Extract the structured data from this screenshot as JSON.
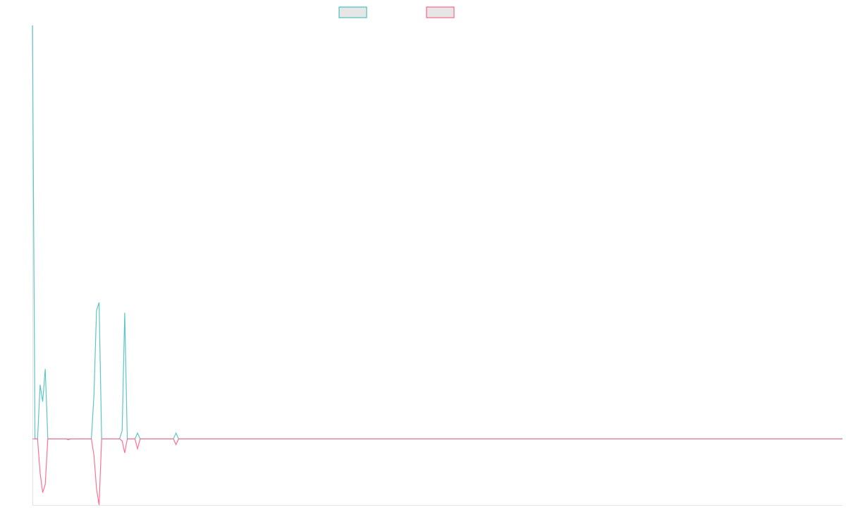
{
  "chart_data": {
    "type": "line",
    "title": "",
    "xlabel": "",
    "ylabel": "",
    "ylim": [
      -16,
      100
    ],
    "grid": false,
    "legend_placement": "top",
    "series": [
      {
        "color": "#4bc0c0",
        "values": [
          100,
          0,
          0,
          13.1,
          9,
          16.9,
          0,
          0,
          0,
          0,
          0,
          0,
          0,
          0,
          0,
          0,
          0,
          0,
          0,
          0,
          0,
          0,
          0,
          0,
          10.6,
          31,
          33,
          0,
          0,
          0,
          0,
          0,
          0,
          0,
          0,
          2,
          30.5,
          0,
          0,
          0,
          0,
          1.4,
          0,
          0,
          0,
          0,
          0,
          0,
          0,
          0,
          0,
          0,
          0,
          0,
          0,
          0,
          1.4,
          0,
          0,
          0,
          0,
          0,
          0,
          0,
          0,
          0,
          0,
          0,
          0,
          0,
          0,
          0,
          0,
          0,
          0,
          0,
          0,
          0,
          0,
          0,
          0,
          0,
          0,
          0,
          0,
          0,
          0,
          0,
          0,
          0,
          0,
          0,
          0,
          0,
          0,
          0,
          0,
          0,
          0,
          0,
          0,
          0,
          0,
          0,
          0,
          0,
          0,
          0,
          0,
          0,
          0,
          0,
          0,
          0,
          0,
          0,
          0,
          0,
          0,
          0,
          0,
          0,
          0,
          0,
          0,
          0,
          0,
          0,
          0,
          0,
          0,
          0,
          0,
          0,
          0,
          0,
          0,
          0,
          0,
          0,
          0,
          0,
          0,
          0,
          0,
          0,
          0,
          0,
          0,
          0,
          0,
          0,
          0,
          0,
          0,
          0,
          0,
          0,
          0,
          0,
          0,
          0,
          0,
          0,
          0,
          0,
          0,
          0,
          0,
          0,
          0,
          0,
          0,
          0,
          0,
          0,
          0,
          0,
          0,
          0,
          0,
          0,
          0,
          0,
          0,
          0,
          0,
          0,
          0,
          0,
          0,
          0,
          0,
          0,
          0,
          0,
          0,
          0,
          0,
          0,
          0,
          0,
          0,
          0,
          0,
          0,
          0,
          0,
          0,
          0,
          0,
          0,
          0,
          0,
          0,
          0,
          0,
          0,
          0,
          0,
          0,
          0,
          0,
          0,
          0,
          0,
          0,
          0,
          0,
          0,
          0,
          0,
          0,
          0,
          0,
          0,
          0,
          0,
          0,
          0,
          0,
          0,
          0,
          0,
          0,
          0,
          0,
          0,
          0,
          0,
          0,
          0,
          0,
          0,
          0,
          0,
          0,
          0,
          0,
          0,
          0,
          0,
          0,
          0,
          0,
          0,
          0,
          0,
          0,
          0,
          0,
          0,
          0,
          0,
          0,
          0,
          0,
          0,
          0,
          0,
          0,
          0,
          0,
          0,
          0,
          0,
          0,
          0,
          0,
          0,
          0,
          0,
          0,
          0,
          0,
          0,
          0,
          0,
          0,
          0,
          0,
          0,
          0,
          0,
          0,
          0,
          0,
          0,
          0,
          0,
          0,
          0,
          0,
          0,
          0,
          0,
          0
        ]
      },
      {
        "color": "#ff6384",
        "values": [
          0,
          0,
          0,
          -8.2,
          -13,
          -11,
          0,
          0,
          0,
          0,
          0,
          0,
          0,
          0,
          -0.2,
          0,
          0,
          0,
          0,
          0,
          0,
          0,
          0,
          0,
          -4,
          -12,
          -16,
          0,
          0,
          0,
          0,
          0,
          0,
          0,
          0,
          -0.5,
          -3.4,
          0,
          0,
          0,
          0,
          -2.4,
          0,
          0,
          0,
          0,
          0,
          0,
          0,
          0,
          0,
          0,
          0,
          0,
          0,
          0,
          -1.4,
          0,
          0,
          0,
          0,
          0,
          0,
          0,
          0,
          0,
          0,
          0,
          0,
          0,
          0,
          0,
          0,
          0,
          0,
          0,
          0,
          0,
          0,
          0,
          0,
          0,
          0,
          0,
          0,
          0,
          0,
          0,
          0,
          0,
          0,
          0,
          0,
          0,
          0,
          0,
          0,
          0,
          0,
          0,
          0,
          0,
          0,
          0,
          0,
          0,
          0,
          0,
          0,
          0,
          0,
          0,
          0,
          0,
          0,
          0,
          0,
          0,
          0,
          0,
          0,
          0,
          0,
          0,
          0,
          0,
          0,
          0,
          0,
          0,
          0,
          0,
          0,
          0,
          0,
          0,
          0,
          0,
          0,
          0,
          0,
          0,
          0,
          0,
          0,
          0,
          0,
          0,
          0,
          0,
          0,
          0,
          0,
          0,
          0,
          0,
          0,
          0,
          0,
          0,
          0,
          0,
          0,
          0,
          0,
          0,
          0,
          0,
          0,
          0,
          0,
          0,
          0,
          0,
          0,
          0,
          0,
          0,
          0,
          0,
          0,
          0,
          0,
          0,
          0,
          0,
          0,
          0,
          0,
          0,
          0,
          0,
          0,
          0,
          0,
          0,
          0,
          0,
          0,
          0,
          0,
          0,
          0,
          0,
          0,
          0,
          0,
          0,
          0,
          0,
          0,
          0,
          0,
          0,
          0,
          0,
          0,
          0,
          0,
          0,
          0,
          0,
          0,
          0,
          0,
          0,
          0,
          0,
          0,
          0,
          0,
          0,
          0,
          0,
          0,
          0,
          0,
          0,
          0,
          0,
          0,
          0,
          0,
          0,
          0,
          0,
          0,
          0,
          0,
          0,
          0,
          0,
          0,
          0,
          0,
          0,
          0,
          0,
          0,
          0,
          0,
          0,
          0,
          0,
          0,
          0,
          0,
          0,
          0,
          0,
          0,
          0,
          0,
          0,
          0,
          0,
          0,
          0,
          0,
          0,
          0,
          0,
          0,
          0,
          0,
          0,
          0,
          0,
          0,
          0,
          0,
          0,
          0,
          0,
          0,
          0,
          0,
          0,
          0,
          0,
          0,
          0,
          0,
          0,
          0,
          0,
          0,
          0,
          0,
          0,
          0,
          0,
          0,
          0,
          0,
          0,
          0
        ]
      }
    ],
    "legend_box_fill": "#e6e6e6",
    "axis_color": "#e5e5e5"
  }
}
